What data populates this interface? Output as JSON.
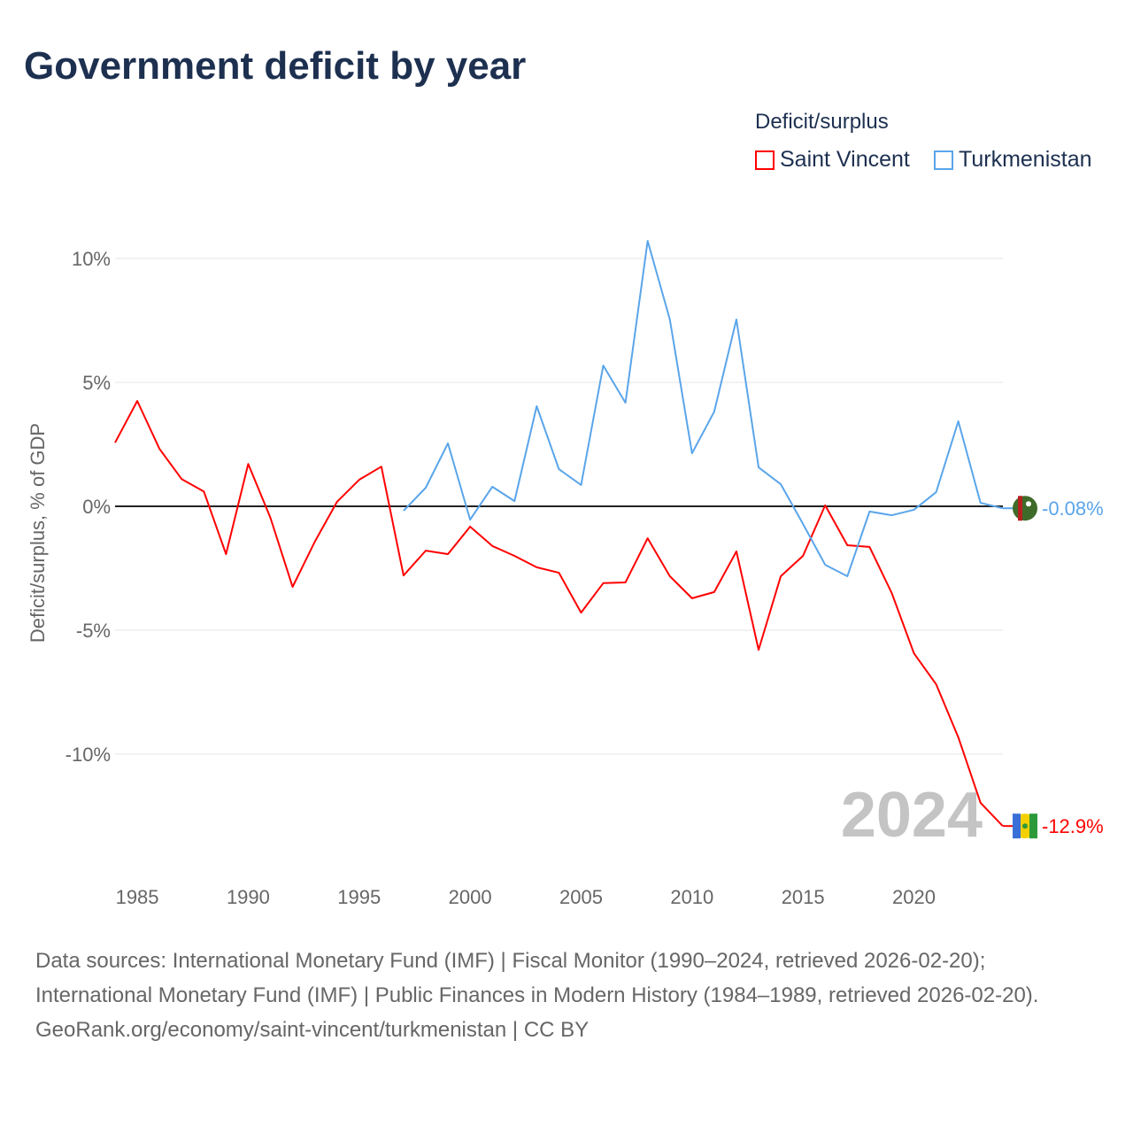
{
  "title": "Government deficit by year",
  "legend": {
    "title": "Deficit/surplus",
    "items": [
      "Saint Vincent",
      "Turkmenistan"
    ]
  },
  "year_label": "2024",
  "sources": [
    "Data sources: International Monetary Fund (IMF) | Fiscal Monitor (1990–2024, retrieved 2026-02-20); International Monetary Fund (IMF) | Public Finances in Modern History (1984–1989, retrieved 2026-02-20).",
    "GeoRank.org/economy/saint-vincent/turkmenistan | CC BY"
  ],
  "chart_data": {
    "type": "line",
    "title": "Government deficit by year",
    "ylabel": "Deficit/surplus, % of GDP",
    "xlabel": "",
    "xlim": [
      1984,
      2024
    ],
    "ylim": [
      -13.5,
      11
    ],
    "xticks": [
      1985,
      1990,
      1995,
      2000,
      2005,
      2010,
      2015,
      2020
    ],
    "yticks": [
      10,
      5,
      0,
      -5,
      -10
    ],
    "ytick_labels": [
      "10%",
      "5%",
      "0%",
      "-5%",
      "-10%"
    ],
    "series": [
      {
        "name": "Saint Vincent",
        "color": "#ff0000",
        "end_label": "-12.9%",
        "start": 1984,
        "values": [
          2.57,
          4.25,
          2.32,
          1.1,
          0.6,
          -1.93,
          1.71,
          -0.46,
          -3.25,
          -1.43,
          0.18,
          1.07,
          1.6,
          -2.79,
          -1.79,
          -1.93,
          -0.82,
          -1.6,
          -2.0,
          -2.46,
          -2.68,
          -4.29,
          -3.1,
          -3.07,
          -1.29,
          -2.82,
          -3.71,
          -3.46,
          -1.82,
          -5.79,
          -2.82,
          -2.0,
          0.04,
          -1.57,
          -1.64,
          -3.5,
          -5.93,
          -7.18,
          -9.32,
          -11.96,
          -12.9
        ]
      },
      {
        "name": "Turkmenistan",
        "color": "#5aa5ea",
        "end_label": "-0.08%",
        "start": 1997,
        "values": [
          -0.18,
          0.75,
          2.54,
          -0.54,
          0.79,
          0.21,
          4.04,
          1.5,
          0.86,
          5.68,
          4.18,
          10.71,
          7.54,
          2.14,
          3.82,
          7.54,
          1.57,
          0.89,
          -0.71,
          -2.36,
          -2.82,
          -0.21,
          -0.36,
          -0.14,
          0.57,
          3.43,
          0.14,
          -0.08
        ]
      }
    ]
  }
}
